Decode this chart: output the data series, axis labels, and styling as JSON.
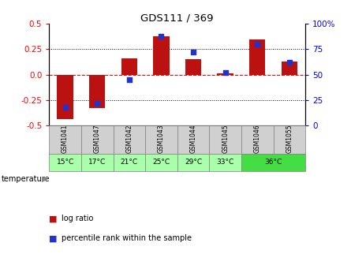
{
  "title": "GDS111 / 369",
  "samples": [
    "GSM1041",
    "GSM1047",
    "GSM1042",
    "GSM1043",
    "GSM1044",
    "GSM1045",
    "GSM1046",
    "GSM1055"
  ],
  "log_ratio": [
    -0.44,
    -0.33,
    0.16,
    0.38,
    0.15,
    0.01,
    0.35,
    0.13
  ],
  "percentile_rank": [
    18,
    22,
    45,
    88,
    72,
    52,
    80,
    62
  ],
  "bar_color_red": "#bb1111",
  "bar_color_blue": "#2233cc",
  "ylim_left": [
    -0.5,
    0.5
  ],
  "ylim_right": [
    0,
    100
  ],
  "yticks_left": [
    -0.5,
    -0.25,
    0.0,
    0.25,
    0.5
  ],
  "yticks_right": [
    0,
    25,
    50,
    75,
    100
  ],
  "sample_bg_color": "#d0d0d0",
  "temp_light_green": "#aaffaa",
  "temp_bright_green": "#44dd44",
  "temp_data": [
    [
      "15°C",
      0,
      1,
      "#aaffaa"
    ],
    [
      "17°C",
      1,
      1,
      "#aaffaa"
    ],
    [
      "21°C",
      2,
      1,
      "#aaffaa"
    ],
    [
      "25°C",
      3,
      1,
      "#aaffaa"
    ],
    [
      "29°C",
      4,
      1,
      "#aaffaa"
    ],
    [
      "33°C",
      5,
      1,
      "#aaffaa"
    ],
    [
      "36°C",
      6,
      2,
      "#44dd44"
    ]
  ]
}
